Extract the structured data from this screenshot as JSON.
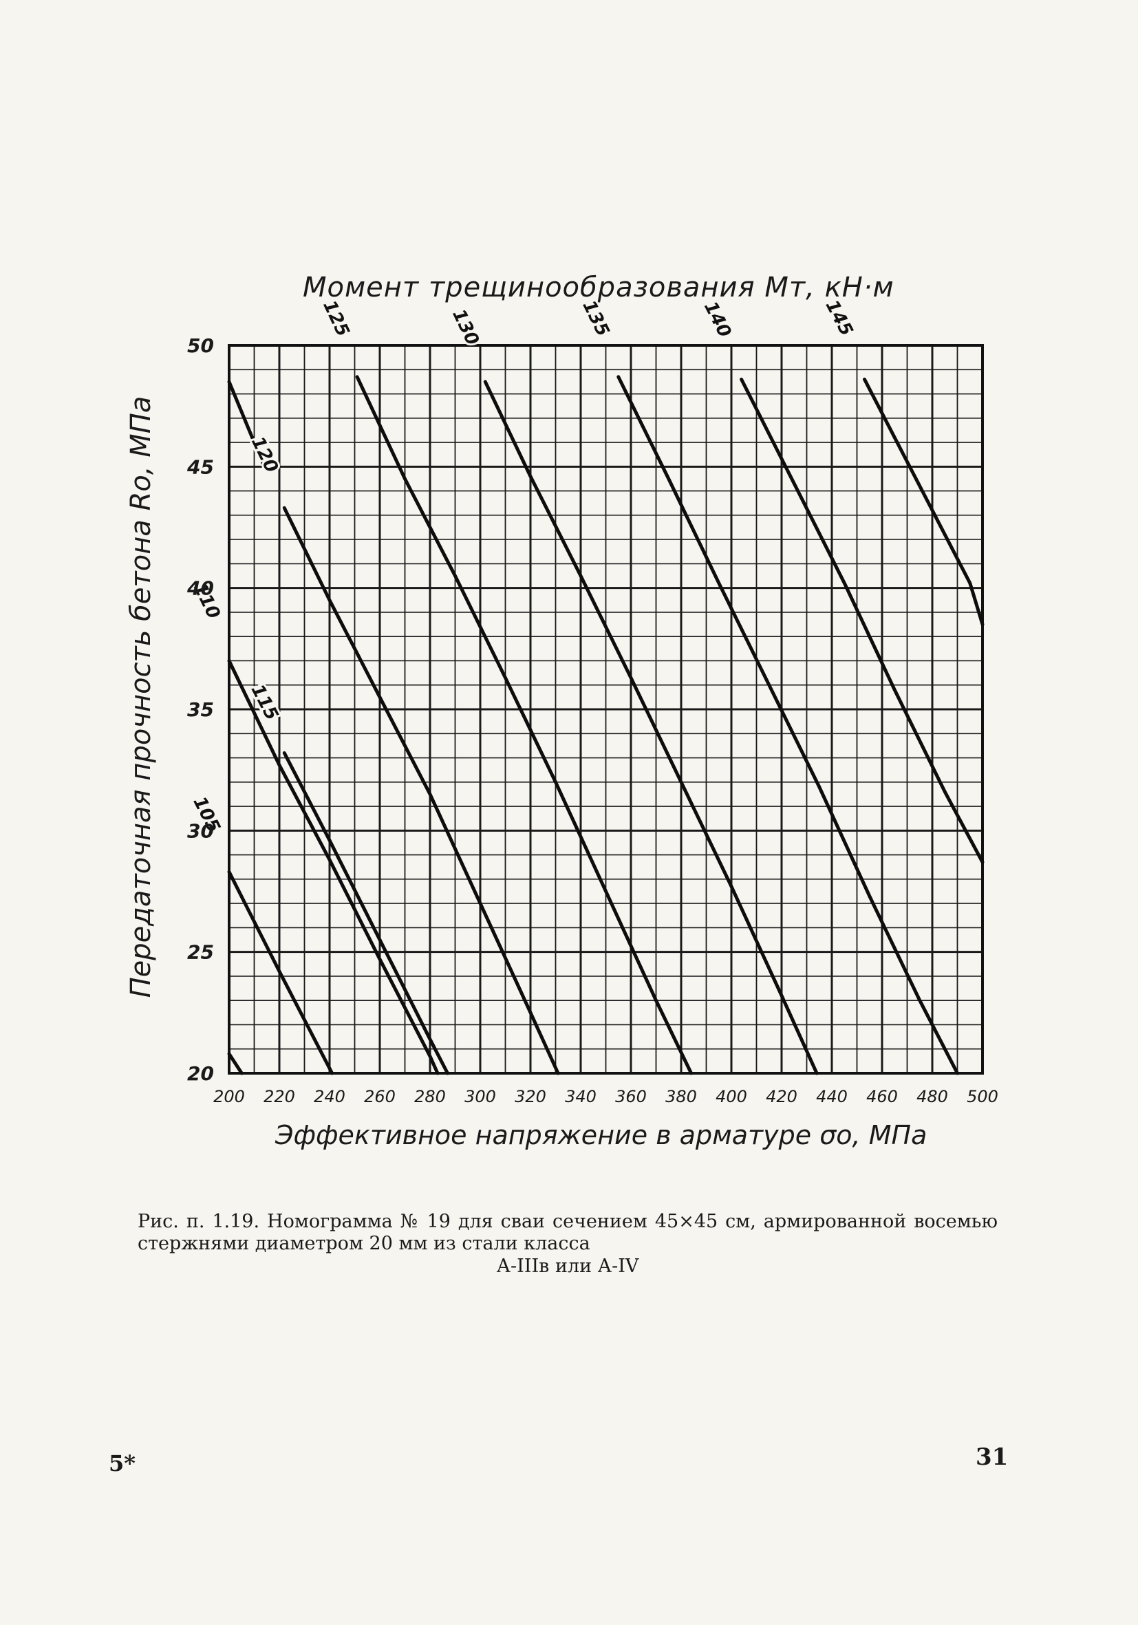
{
  "chart_data": {
    "type": "line",
    "title": "Момент трещинообразования Mт, кН·м",
    "xlabel": "Эффективное напряжение в арматуре σo, МПа",
    "ylabel": "Передаточная прочность бетона Ro, МПа",
    "xlim": [
      200,
      500
    ],
    "ylim": [
      20,
      50
    ],
    "x_ticks": [
      "200",
      "220",
      "240",
      "260",
      "280",
      "300",
      "320",
      "340",
      "360",
      "380",
      "400",
      "420",
      "440",
      "460",
      "480",
      "500"
    ],
    "y_ticks": [
      "20",
      "25",
      "30",
      "35",
      "40",
      "45",
      "50"
    ],
    "grid": true,
    "series": [
      {
        "name": "",
        "values": [
          [
            200,
            48.5
          ],
          [
            214,
            45
          ]
        ]
      },
      {
        "name": "120",
        "values": [
          [
            222,
            43.3
          ],
          [
            240,
            39.5
          ],
          [
            260,
            35.5
          ],
          [
            280,
            31.5
          ],
          [
            300,
            27
          ],
          [
            320,
            22.5
          ],
          [
            331,
            20
          ]
        ]
      },
      {
        "name": "125",
        "values": [
          [
            251,
            48.7
          ],
          [
            270,
            44.5
          ],
          [
            290,
            40.5
          ],
          [
            310,
            36.3
          ],
          [
            330,
            32
          ],
          [
            350,
            27.5
          ],
          [
            370,
            23
          ],
          [
            384,
            20
          ]
        ]
      },
      {
        "name": "130",
        "values": [
          [
            302,
            48.5
          ],
          [
            320,
            44.6
          ],
          [
            340,
            40.5
          ],
          [
            360,
            36.3
          ],
          [
            380,
            32
          ],
          [
            400,
            27.7
          ],
          [
            420,
            23.2
          ],
          [
            434,
            20
          ]
        ]
      },
      {
        "name": "135",
        "values": [
          [
            355,
            48.7
          ],
          [
            375,
            44.5
          ],
          [
            395,
            40.2
          ],
          [
            415,
            36
          ],
          [
            435,
            31.8
          ],
          [
            455,
            27.3
          ],
          [
            475,
            23
          ],
          [
            490,
            20
          ]
        ]
      },
      {
        "name": "140",
        "values": [
          [
            404,
            48.6
          ],
          [
            425,
            44.3
          ],
          [
            445,
            40.2
          ],
          [
            465,
            35.8
          ],
          [
            485,
            31.6
          ],
          [
            500,
            28.7
          ]
        ]
      },
      {
        "name": "145",
        "values": [
          [
            453,
            48.6
          ],
          [
            475,
            44.2
          ],
          [
            495,
            40.2
          ],
          [
            500,
            38.5
          ]
        ]
      },
      {
        "name": "110",
        "values": [
          [
            200,
            37
          ],
          [
            220,
            32.7
          ],
          [
            240,
            28.8
          ],
          [
            260,
            24.7
          ],
          [
            280,
            20.7
          ],
          [
            283,
            20
          ]
        ]
      },
      {
        "name": "115",
        "values": [
          [
            222,
            33.2
          ],
          [
            240,
            29.6
          ],
          [
            260,
            25.5
          ],
          [
            280,
            21.4
          ],
          [
            287,
            20
          ]
        ]
      },
      {
        "name": "105",
        "values": [
          [
            200,
            28.3
          ],
          [
            220,
            24.2
          ],
          [
            240,
            20.2
          ],
          [
            241,
            20
          ]
        ]
      },
      {
        "name": "",
        "values": [
          [
            200,
            20.8
          ],
          [
            205,
            20
          ]
        ]
      }
    ]
  },
  "figure_caption": "Рис. п. 1.19. Номограмма № 19 для сваи сечением 45×45 см, армированной восемью стержнями диаметром 20 мм из стали класса",
  "figure_caption_last": "А-IIIв или А-IV",
  "page_marks": {
    "left": "5*",
    "right": "31"
  }
}
